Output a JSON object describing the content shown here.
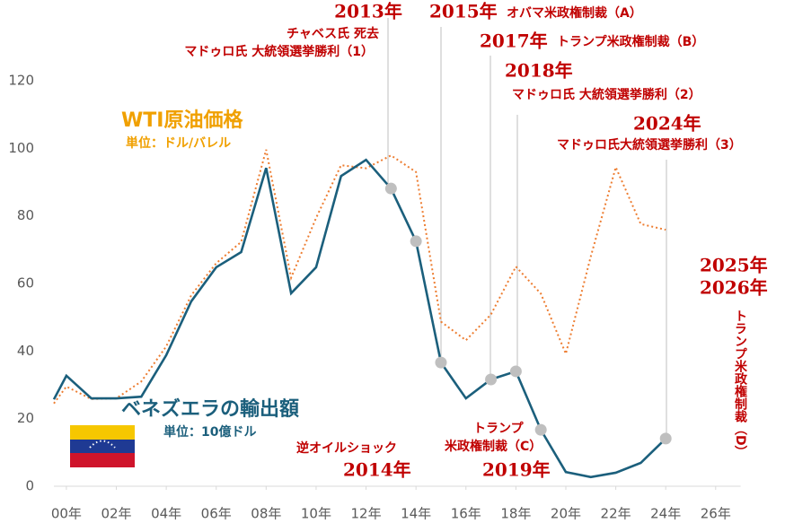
{
  "chart_data": {
    "type": "line",
    "x": [
      1999.5,
      2000,
      2001,
      2002,
      2003,
      2004,
      2005,
      2006,
      2007,
      2008,
      2009,
      2010,
      2011,
      2012,
      2013,
      2014,
      2015,
      2016,
      2017,
      2018,
      2019,
      2020,
      2021,
      2022,
      2023,
      2024
    ],
    "series": [
      {
        "name": "ベネズエラの輸出額",
        "unit": "単位：10億ドル",
        "color": "#1b5f7c",
        "style": "solid",
        "values": [
          25.7,
          32.7,
          26,
          26,
          26.5,
          38.8,
          54.7,
          64.8,
          69.3,
          94.2,
          57.1,
          64.8,
          91.8,
          96.6,
          88.1,
          72.5,
          36.6,
          26,
          31.6,
          34,
          16.7,
          4.2,
          2.7,
          4,
          6.9,
          14.1
        ]
      },
      {
        "name": "WTI原油価格",
        "unit": "単位：ドル/バレル",
        "color": "#ed7d31",
        "style": "dotted",
        "values": [
          24.5,
          29.5,
          25.8,
          26,
          31,
          41.4,
          56.5,
          66,
          72.3,
          99.6,
          61.7,
          79.4,
          95,
          94.1,
          97.9,
          93,
          48.7,
          43.2,
          50.8,
          65,
          57,
          39.2,
          68,
          94.4,
          77.6,
          75.9
        ]
      }
    ],
    "highlight_x": [
      2013,
      2014,
      2015,
      2017,
      2018,
      2019,
      2024
    ],
    "xlim": [
      1999.5,
      2027
    ],
    "xticks": [
      {
        "value": 2000,
        "label": "00年"
      },
      {
        "value": 2002,
        "label": "02年"
      },
      {
        "value": 2004,
        "label": "04年"
      },
      {
        "value": 2006,
        "label": "06年"
      },
      {
        "value": 2008,
        "label": "08年"
      },
      {
        "value": 2010,
        "label": "10年"
      },
      {
        "value": 2012,
        "label": "12年"
      },
      {
        "value": 2014,
        "label": "14年"
      },
      {
        "value": 2016,
        "label": "16年"
      },
      {
        "value": 2018,
        "label": "18年"
      },
      {
        "value": 2020,
        "label": "20年"
      },
      {
        "value": 2022,
        "label": "22年"
      },
      {
        "value": 2024,
        "label": "24年"
      },
      {
        "value": 2026,
        "label": "26年"
      }
    ],
    "ylim": [
      0,
      143.9
    ],
    "yticks": [
      0,
      20,
      40,
      60,
      80,
      100,
      120
    ],
    "grid": false,
    "annotations": [
      "2013年",
      "チャベス氏 死去",
      "マドゥロ氏 大統領選挙勝利（1）",
      "2015年",
      "オバマ米政権制裁（A）",
      "2017年",
      "トランプ米政権制裁（B）",
      "2018年",
      "マドゥロ氏 大統領選挙勝利（2）",
      "2024年",
      "マドゥロ氏大統領選挙勝利（3）",
      "2025年",
      "2026年",
      "トランプ米政権制裁（D）",
      "逆オイルショック",
      "2014年",
      "トランプ",
      "米政権制裁（C）",
      "2019年"
    ]
  }
}
